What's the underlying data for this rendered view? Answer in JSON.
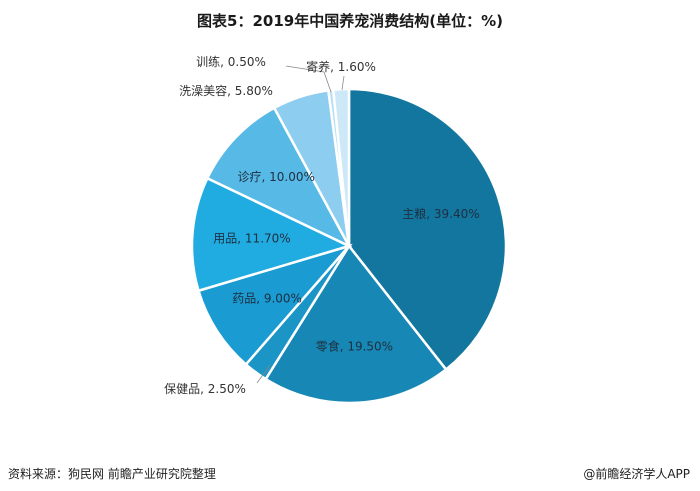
{
  "title": "图表5：2019年中国养宠消费结构(单位：%)",
  "footer": {
    "source": "资料来源：狗民网 前瞻产业研究院整理",
    "credit": "@前瞻经济学人APP"
  },
  "chart_data": {
    "type": "pie",
    "title": "图表5：2019年中国养宠消费结构(单位：%)",
    "slices": [
      {
        "label": "主粮",
        "value": 39.4,
        "display": "主粮, 39.40%",
        "color": "#12769f"
      },
      {
        "label": "零食",
        "value": 19.5,
        "display": "零食, 19.50%",
        "color": "#1788b5"
      },
      {
        "label": "保健品",
        "value": 2.5,
        "display": "保健品, 2.50%",
        "color": "#1b94c6"
      },
      {
        "label": "药品",
        "value": 9.0,
        "display": "药品, 9.00%",
        "color": "#1a9bd2"
      },
      {
        "label": "用品",
        "value": 11.7,
        "display": "用品, 11.70%",
        "color": "#20ace0"
      },
      {
        "label": "诊疗",
        "value": 10.0,
        "display": "诊疗, 10.00%",
        "color": "#56b9e6"
      },
      {
        "label": "洗澡美容",
        "value": 5.8,
        "display": "洗澡美容, 5.80%",
        "color": "#8ccdf0"
      },
      {
        "label": "训练",
        "value": 0.5,
        "display": "训练, 0.50%",
        "color": "#b7dff5"
      },
      {
        "label": "寄养",
        "value": 1.6,
        "display": "寄养, 1.60%",
        "color": "#cde8f7"
      }
    ]
  }
}
